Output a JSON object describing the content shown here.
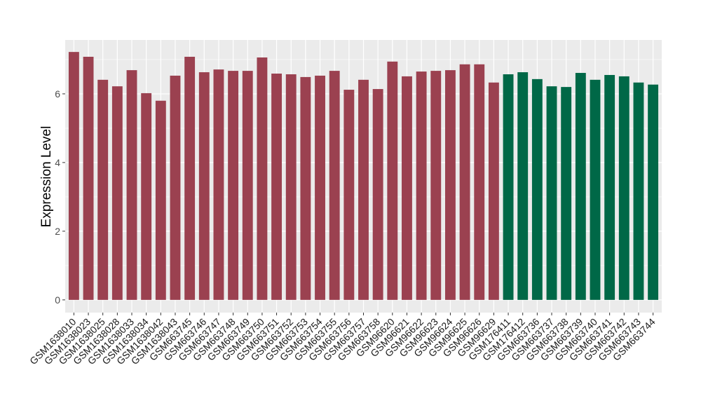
{
  "chart_data": {
    "type": "bar",
    "title": "",
    "xlabel": "",
    "ylabel": "Expression Level",
    "ylim": [
      -0.37,
      7.57
    ],
    "yticks": [
      0,
      2,
      4,
      6
    ],
    "grid": true,
    "legend": "none",
    "colors": {
      "group1": "#9B4150",
      "group2": "#006847",
      "panel": "#EBEBEB",
      "grid": "#FFFFFF"
    },
    "categories": [
      "GSM1638010",
      "GSM1638023",
      "GSM1638025",
      "GSM1638028",
      "GSM1638033",
      "GSM1638034",
      "GSM1638042",
      "GSM1638043",
      "GSM663745",
      "GSM663746",
      "GSM663747",
      "GSM663748",
      "GSM663749",
      "GSM663750",
      "GSM663751",
      "GSM663752",
      "GSM663753",
      "GSM663754",
      "GSM663755",
      "GSM663756",
      "GSM663757",
      "GSM663758",
      "GSM96620",
      "GSM96621",
      "GSM96622",
      "GSM96623",
      "GSM96624",
      "GSM96625",
      "GSM96626",
      "GSM96629",
      "GSM176411",
      "GSM176412",
      "GSM663736",
      "GSM663737",
      "GSM663738",
      "GSM663739",
      "GSM663740",
      "GSM663741",
      "GSM663742",
      "GSM663743",
      "GSM663744"
    ],
    "values": [
      7.22,
      7.08,
      6.41,
      6.22,
      6.69,
      6.02,
      5.8,
      6.53,
      7.08,
      6.63,
      6.71,
      6.67,
      6.67,
      7.06,
      6.59,
      6.57,
      6.49,
      6.53,
      6.67,
      6.12,
      6.41,
      6.14,
      6.94,
      6.51,
      6.65,
      6.67,
      6.69,
      6.86,
      6.86,
      6.33,
      6.57,
      6.63,
      6.43,
      6.22,
      6.2,
      6.61,
      6.41,
      6.55,
      6.51,
      6.33,
      6.27
    ],
    "groups": [
      1,
      1,
      1,
      1,
      1,
      1,
      1,
      1,
      1,
      1,
      1,
      1,
      1,
      1,
      1,
      1,
      1,
      1,
      1,
      1,
      1,
      1,
      1,
      1,
      1,
      1,
      1,
      1,
      1,
      1,
      2,
      2,
      2,
      2,
      2,
      2,
      2,
      2,
      2,
      2,
      2
    ]
  }
}
